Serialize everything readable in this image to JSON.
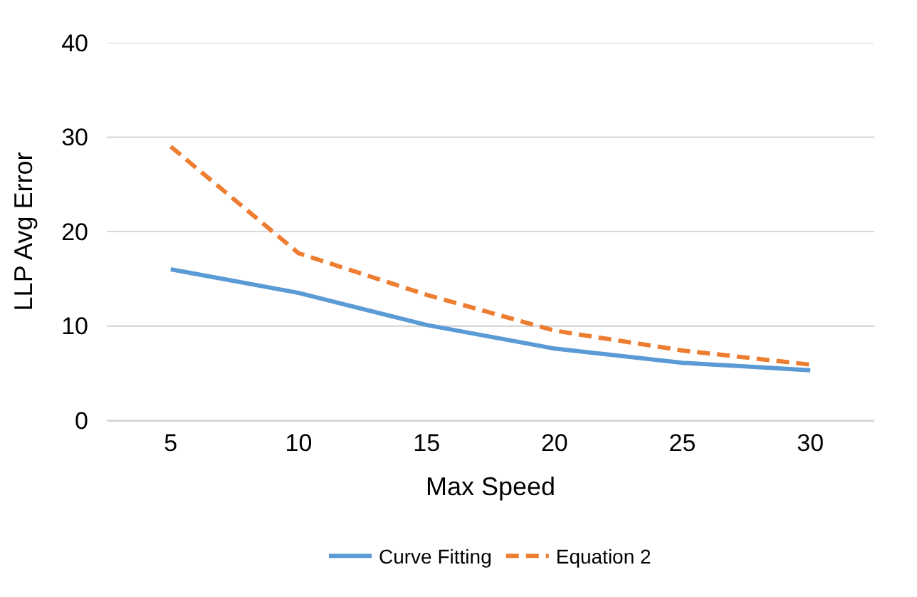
{
  "chart_data": {
    "type": "line",
    "xlabel": "Max Speed",
    "ylabel": "LLP Avg Error",
    "categories": [
      "5",
      "10",
      "15",
      "20",
      "25",
      "30"
    ],
    "series": [
      {
        "name": "Curve Fitting",
        "color": "#5b9bd5",
        "line_style": "solid",
        "values": [
          16,
          13.5,
          10.1,
          7.6,
          6.1,
          5.3
        ]
      },
      {
        "name": "Equation 2",
        "color": "#ed7d31",
        "line_style": "dashed",
        "values": [
          29,
          17.7,
          13.3,
          9.5,
          7.4,
          5.9
        ]
      }
    ],
    "ylim": [
      0,
      40
    ],
    "yticks": [
      0,
      10,
      20,
      30,
      40
    ],
    "grid": "y",
    "legend": "bottom",
    "marker": "none"
  }
}
